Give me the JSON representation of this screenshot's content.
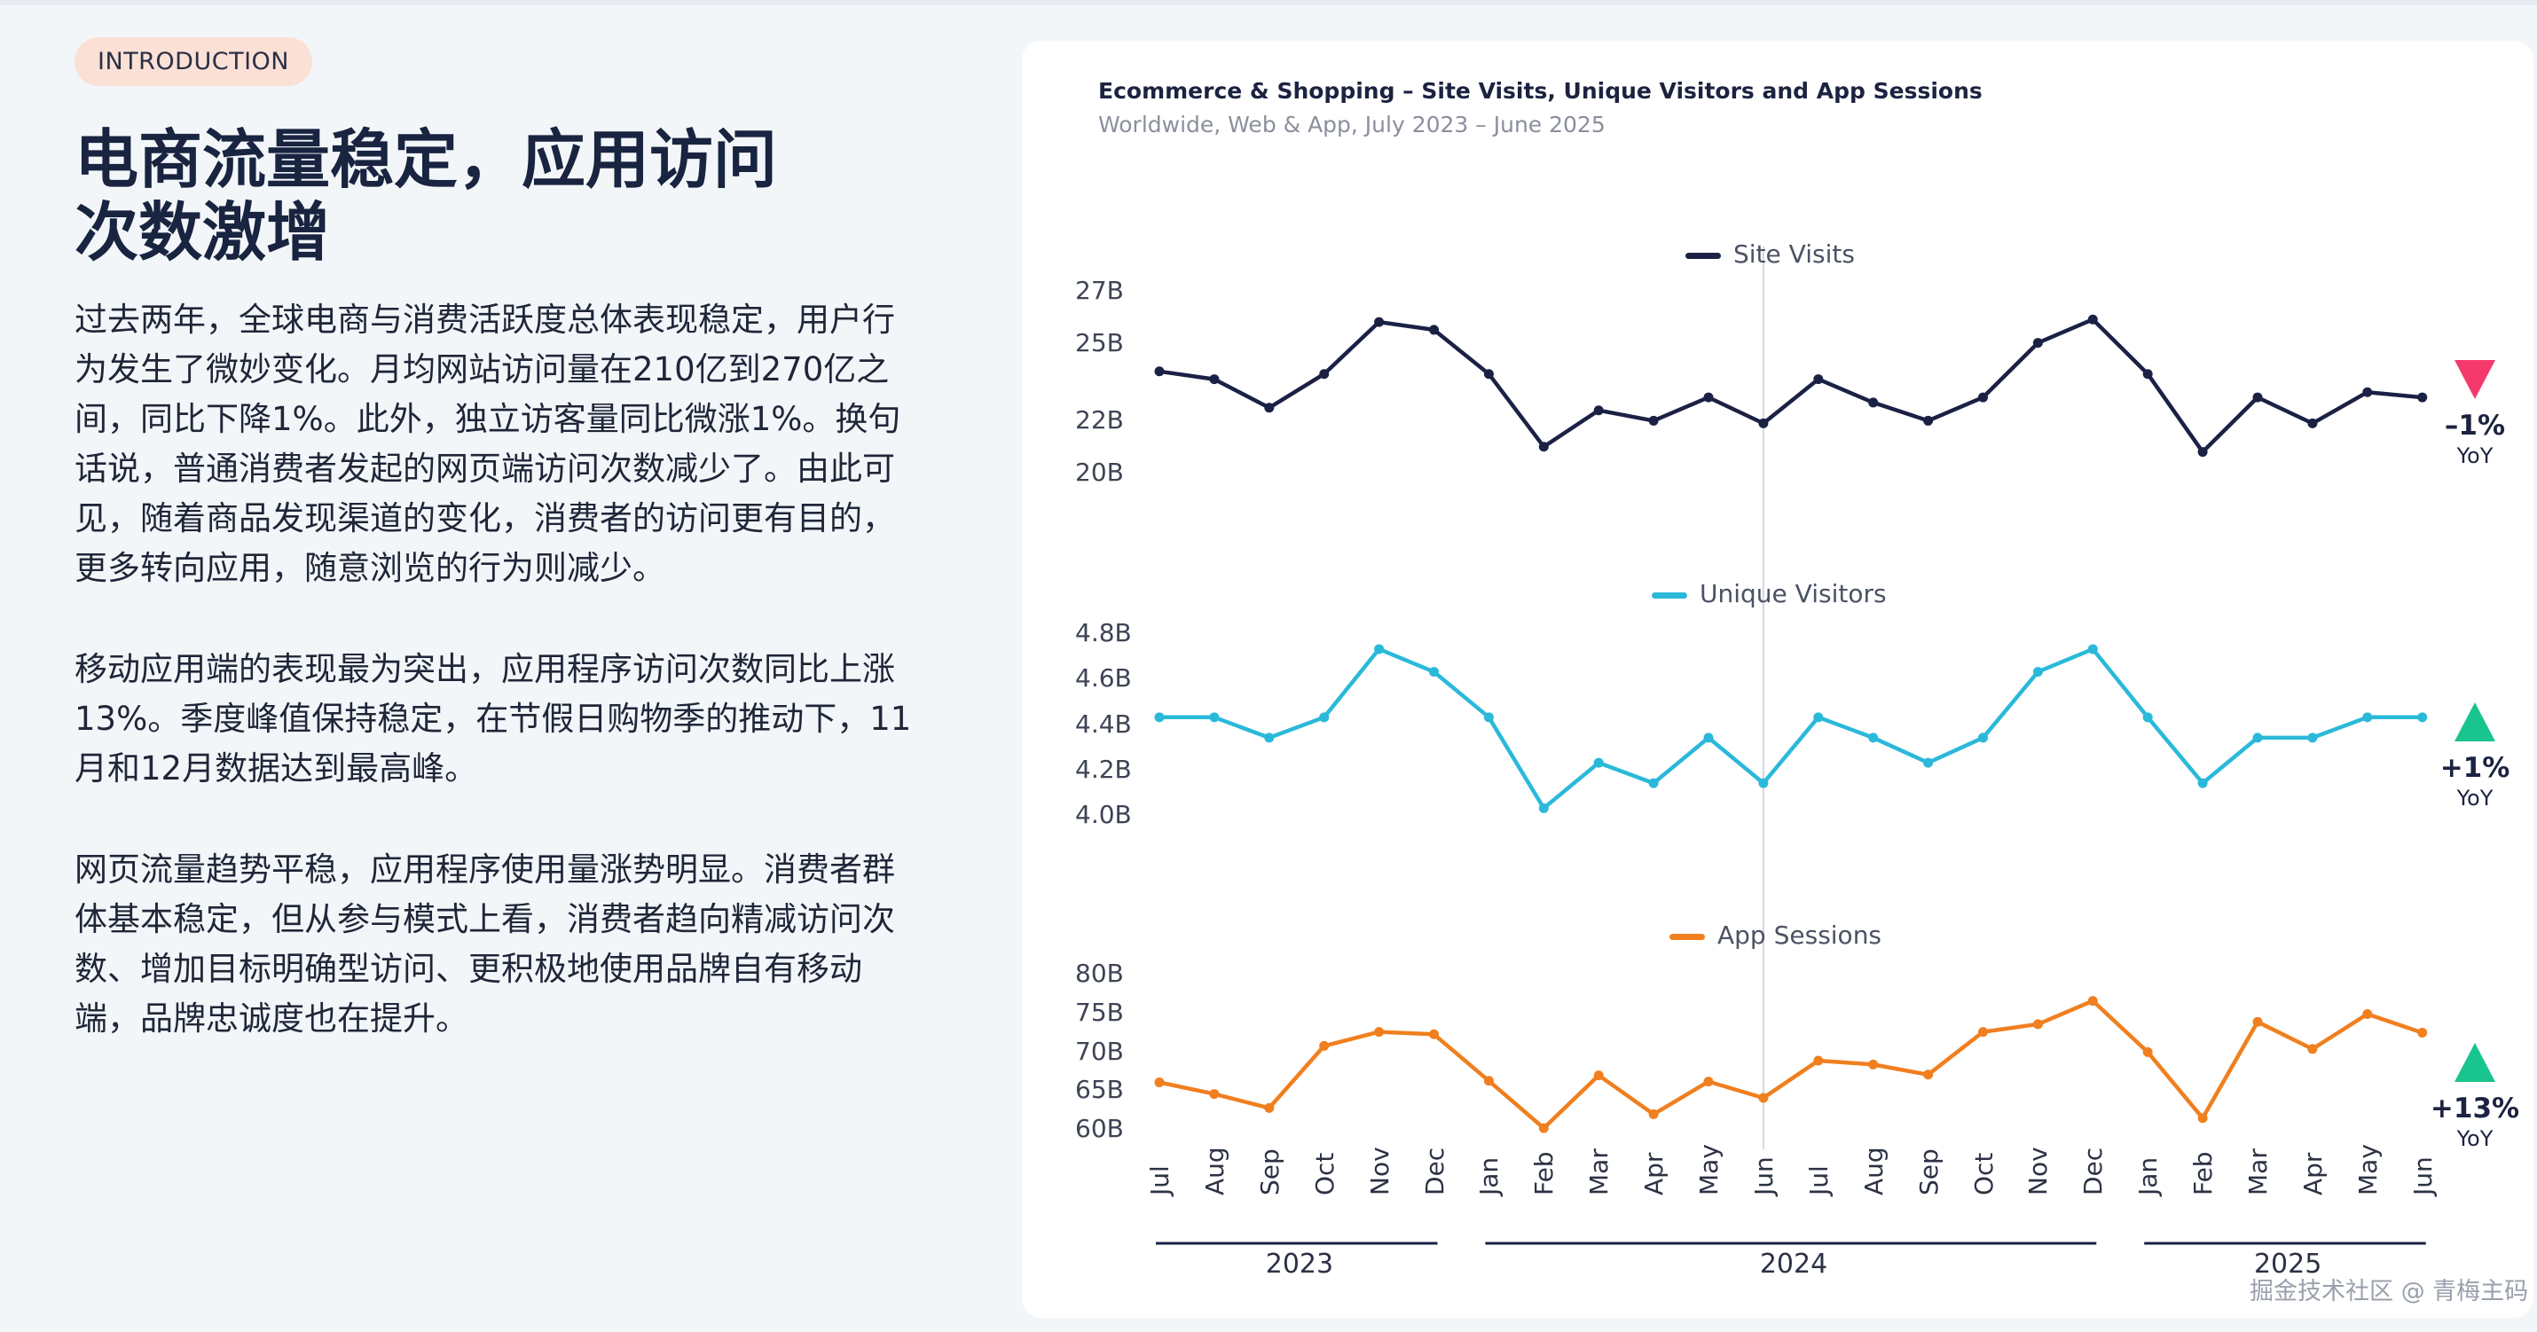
{
  "badge": "INTRODUCTION",
  "headline_line1": "电商流量稳定，应用访问",
  "headline_line2": "次数激增",
  "paragraphs": [
    "过去两年，全球电商与消费活跃度总体表现稳定，用户行为发生了微妙变化。月均网站访问量在210亿到270亿之间，同比下降1%。此外，独立访客量同比微涨1%。换句话说，普通消费者发起的网页端访问次数减少了。由此可见，随着商品发现渠道的变化，消费者的访问更有目的，更多转向应用，随意浏览的行为则减少。",
    "移动应用端的表现最为突出，应用程序访问次数同比上涨13%。季度峰值保持稳定，在节假日购物季的推动下，11月和12月数据达到最高峰。",
    "网页流量趋势平稳，应用程序使用量涨势明显。消费者群体基本稳定，但从参与模式上看，消费者趋向精减访问次数、增加目标明确型访问、更积极地使用品牌自有移动端，品牌忠诚度也在提升。"
  ],
  "watermark": "掘金技术社区 @ 青梅主码",
  "colors": {
    "site": "#1b2145",
    "unique": "#2ab9d9",
    "app": "#f07f1f",
    "down": "#f5396d",
    "up": "#19c48e",
    "divider": "#d4d7dc"
  },
  "chart_data": {
    "type": "line",
    "title": "Ecommerce & Shopping – Site Visits, Unique Visitors and App Sessions",
    "subtitle": "Worldwide, Web & App, July 2023 – June 2025",
    "categories": [
      "Jul",
      "Aug",
      "Sep",
      "Oct",
      "Nov",
      "Dec",
      "Jan",
      "Feb",
      "Mar",
      "Apr",
      "May",
      "Jun",
      "Jul",
      "Aug",
      "Sep",
      "Oct",
      "Nov",
      "Dec",
      "Jan",
      "Feb",
      "Mar",
      "Apr",
      "May",
      "Jun"
    ],
    "years": [
      {
        "label": "2023",
        "from": 0,
        "to": 5
      },
      {
        "label": "2024",
        "from": 6,
        "to": 17
      },
      {
        "label": "2025",
        "from": 18,
        "to": 23
      }
    ],
    "divider_index": 11,
    "series": [
      {
        "name": "Site Visits",
        "color_key": "site",
        "values": [
          23.9,
          23.6,
          22.5,
          23.8,
          25.8,
          25.5,
          23.8,
          21.0,
          22.4,
          22.0,
          22.9,
          21.9,
          23.6,
          22.7,
          22.0,
          22.9,
          25.0,
          25.9,
          23.8,
          20.8,
          22.9,
          21.9,
          23.1,
          22.9
        ],
        "yticks": [
          27,
          25,
          22,
          20
        ],
        "ytick_labels": [
          "27B",
          "25B",
          "22B",
          "20B"
        ],
        "ylim": [
          20,
          27
        ],
        "yoy": "–1%",
        "yoy_label": "YoY",
        "direction": "down"
      },
      {
        "name": "Unique Visitors",
        "color_key": "unique",
        "values": [
          4.43,
          4.43,
          4.34,
          4.43,
          4.73,
          4.63,
          4.43,
          4.03,
          4.23,
          4.14,
          4.34,
          4.14,
          4.43,
          4.34,
          4.23,
          4.34,
          4.63,
          4.73,
          4.43,
          4.14,
          4.34,
          4.34,
          4.43,
          4.43
        ],
        "yticks": [
          4.8,
          4.6,
          4.4,
          4.2,
          4.0
        ],
        "ytick_labels": [
          "4.8B",
          "4.6B",
          "4.4B",
          "4.2B",
          "4.0B"
        ],
        "ylim": [
          4.0,
          4.8
        ],
        "yoy": "+1%",
        "yoy_label": "YoY",
        "direction": "up"
      },
      {
        "name": "App Sessions",
        "color_key": "app",
        "values": [
          66.0,
          64.5,
          62.7,
          70.7,
          72.5,
          72.2,
          66.2,
          60.1,
          66.9,
          61.9,
          66.1,
          64.0,
          68.8,
          68.3,
          67.0,
          72.5,
          73.5,
          76.5,
          69.9,
          61.4,
          73.8,
          70.3,
          74.8,
          72.4
        ],
        "yticks": [
          80,
          75,
          70,
          65,
          60
        ],
        "ytick_labels": [
          "80B",
          "75B",
          "70B",
          "65B",
          "60B"
        ],
        "ylim": [
          60,
          80
        ],
        "yoy": "+13%",
        "yoy_label": "YoY",
        "direction": "up"
      }
    ]
  }
}
